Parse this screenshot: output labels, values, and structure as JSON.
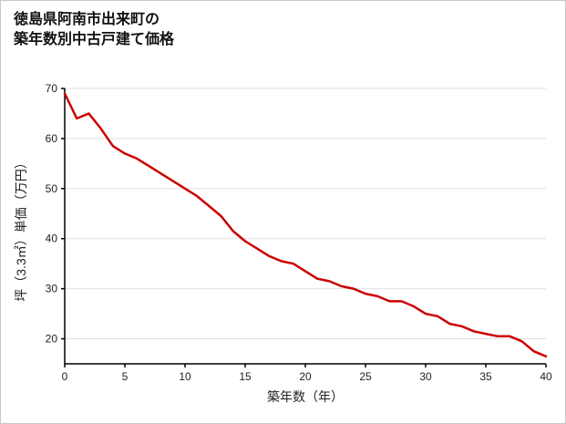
{
  "title": {
    "line1": "徳島県阿南市出来町の",
    "line2": "築年数別中古戸建て価格"
  },
  "chart_data": {
    "type": "line",
    "title": "徳島県阿南市出来町の築年数別中古戸建て価格",
    "xlabel": "築年数（年）",
    "ylabel": "坪（3.3㎡）単価（万円）",
    "x": [
      0,
      1,
      2,
      3,
      4,
      5,
      6,
      7,
      8,
      9,
      10,
      11,
      12,
      13,
      14,
      15,
      16,
      17,
      18,
      19,
      20,
      21,
      22,
      23,
      24,
      25,
      26,
      27,
      28,
      29,
      30,
      31,
      32,
      33,
      34,
      35,
      36,
      37,
      38,
      39,
      40
    ],
    "values": [
      69,
      64,
      65,
      62,
      58.5,
      57,
      56,
      54.5,
      53,
      51.5,
      50,
      48.5,
      46.5,
      44.5,
      41.5,
      39.5,
      38,
      36.5,
      35.5,
      35,
      33.5,
      32,
      31.5,
      30.5,
      30,
      29,
      28.5,
      27.5,
      27.5,
      26.5,
      25,
      24.5,
      23,
      22.5,
      21.5,
      21,
      20.5,
      20.5,
      19.5,
      17.5,
      16.5
    ],
    "xlim": [
      0,
      40
    ],
    "ylim": [
      15,
      70
    ],
    "x_ticks": [
      0,
      5,
      10,
      15,
      20,
      25,
      30,
      35,
      40
    ],
    "y_ticks": [
      20,
      30,
      40,
      50,
      60,
      70
    ],
    "grid": "horizontal",
    "legend": "none",
    "line_color": "#cc0000",
    "axis_color": "#000000",
    "grid_color": "#e0e0e0",
    "tick_label_color": "#222222"
  }
}
